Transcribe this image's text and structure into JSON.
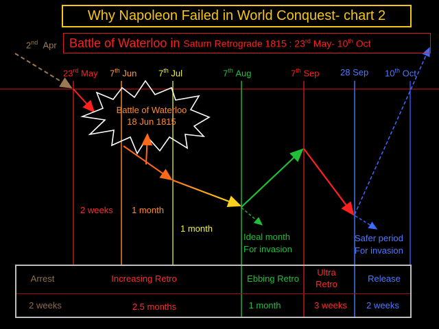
{
  "title": "Why Napoleon Failed in World Conquest- chart 2",
  "subtitle": {
    "main": "Battle of Waterloo in",
    "detail_prefix": "Saturn Retrograde 1815 : 23",
    "sup1": "rd",
    "detail_mid": "May-  10",
    "sup2": "th",
    "detail_suffix": "Oct"
  },
  "start_label": {
    "day": "2",
    "sup": "nd",
    "month": "Apr"
  },
  "dates": [
    {
      "day": "23",
      "sup": "rd",
      "month": "May",
      "color": "#ff1f1f"
    },
    {
      "day": "7",
      "sup": "th",
      "month": "Jun",
      "color": "#ff9a3a"
    },
    {
      "day": "7",
      "sup": "th",
      "month": "Jul",
      "color": "#f0f03a"
    },
    {
      "day": "7",
      "sup": "th",
      "month": "Aug",
      "color": "#1fbf3a"
    },
    {
      "day": "7",
      "sup": "th",
      "month": "Sep",
      "color": "#ff1f1f"
    },
    {
      "day": "",
      "sup": "",
      "month": "28 Sep",
      "color": "#4d79ff"
    },
    {
      "day": "10",
      "sup": "th",
      "month": "Oct",
      "color": "#4d79ff"
    }
  ],
  "burst": {
    "line1": "Battle of Waterloo",
    "line2": "18 Jun 1815"
  },
  "durations": {
    "two_weeks": "2 weeks",
    "one_month_a": "1 month",
    "one_month_b": "1 month"
  },
  "notes": {
    "ideal_line1": "Ideal month",
    "ideal_line2": "For invasion",
    "safer_line1": "Safer period",
    "safer_line2": "For invasion"
  },
  "table": {
    "phases": [
      {
        "label": "Arrest",
        "color": "#8c6d4f"
      },
      {
        "label": "Increasing Retro",
        "color": "#ff2a2a"
      },
      {
        "label": "Ebbing Retro",
        "color": "#1fbf3a"
      },
      {
        "label": "Ultra\nRetro",
        "color": "#ff2a2a"
      },
      {
        "label": "Release",
        "color": "#4d79ff"
      }
    ],
    "durations": [
      {
        "label": "2 weeks",
        "color": "#8c6d4f"
      },
      {
        "label": "2.5 months",
        "color": "#ff2a2a"
      },
      {
        "label": "1 month",
        "color": "#1fbf3a"
      },
      {
        "label": "3 weeks",
        "color": "#ff2a2a"
      },
      {
        "label": "2 weeks",
        "color": "#4d79ff"
      }
    ]
  }
}
